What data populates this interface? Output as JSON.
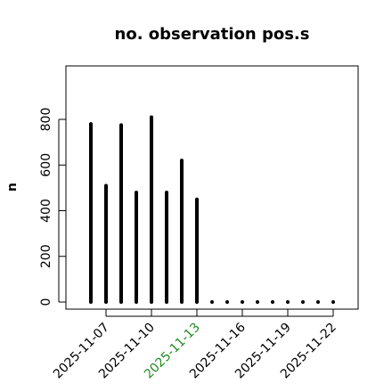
{
  "chart_data": {
    "type": "bar",
    "title": "no. observation pos.s",
    "xlabel": "",
    "ylabel": "n",
    "ylim": [
      -30,
      1000
    ],
    "yticks": [
      0,
      200,
      400,
      600,
      800
    ],
    "x": [
      "2025-11-06",
      "2025-11-07",
      "2025-11-08",
      "2025-11-09",
      "2025-11-10",
      "2025-11-11",
      "2025-11-12",
      "2025-11-13",
      "2025-11-14",
      "2025-11-15",
      "2025-11-16",
      "2025-11-17",
      "2025-11-18",
      "2025-11-19",
      "2025-11-20",
      "2025-11-21",
      "2025-11-22"
    ],
    "values": [
      780,
      510,
      775,
      480,
      810,
      480,
      620,
      450,
      0,
      0,
      0,
      0,
      0,
      0,
      0,
      0,
      0
    ],
    "xticks": [
      {
        "label": "2025-11-07",
        "color": "#000000"
      },
      {
        "label": "2025-11-10",
        "color": "#000000"
      },
      {
        "label": "2025-11-13",
        "color": "#228B22"
      },
      {
        "label": "2025-11-16",
        "color": "#000000"
      },
      {
        "label": "2025-11-19",
        "color": "#000000"
      },
      {
        "label": "2025-11-22",
        "color": "#000000"
      }
    ],
    "bar_color": "#000000",
    "grid": false
  }
}
